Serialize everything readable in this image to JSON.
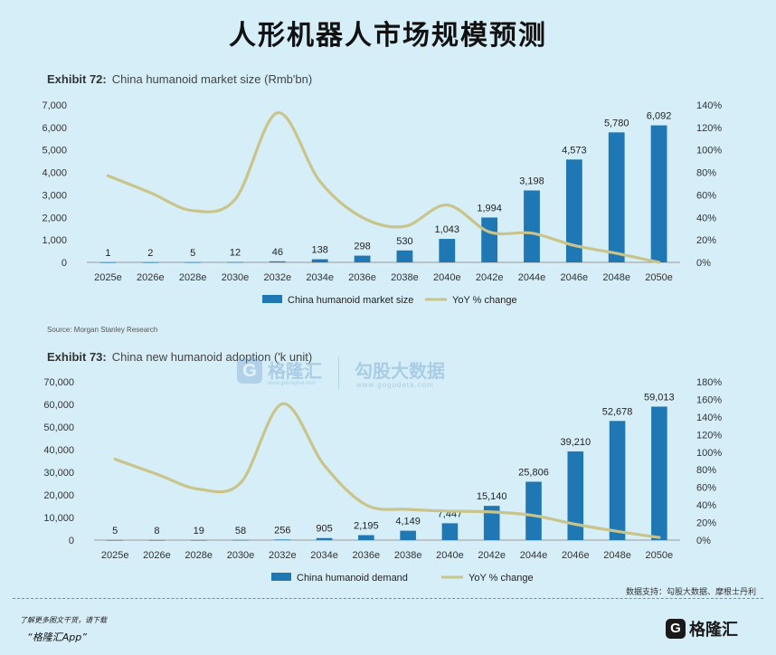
{
  "page": {
    "title": "人形机器人市场规模预测",
    "source": "Source: Morgan Stanley Research",
    "data_source": "数据支持：勾股大数据、摩根士丹利",
    "footer_line1": "了解更多图文干货，请下载",
    "footer_line2": "“格隆汇App”",
    "brand": "格隆汇",
    "brand_icon": "G",
    "watermark": {
      "name": "格隆汇",
      "url": "www.gelonghui.com",
      "name2": "勾股大数据",
      "url2": "www.gogudata.com"
    }
  },
  "chart_data": [
    {
      "type": "bar",
      "exhibit": "Exhibit 72:",
      "title": "China humanoid market size (Rmb'bn)",
      "categories": [
        "2025e",
        "2026e",
        "2028e",
        "2030e",
        "2032e",
        "2034e",
        "2036e",
        "2038e",
        "2040e",
        "2042e",
        "2044e",
        "2046e",
        "2048e",
        "2050e"
      ],
      "series": [
        {
          "name": "China humanoid market size",
          "kind": "bar",
          "axis": "left",
          "color": "#1f77b4",
          "values": [
            1,
            2,
            5,
            12,
            46,
            138,
            298,
            530,
            1043,
            1994,
            3198,
            4573,
            5780,
            6092
          ],
          "labels": [
            "1",
            "2",
            "5",
            "12",
            "46",
            "138",
            "298",
            "530",
            "1,043",
            "1,994",
            "3,198",
            "4,573",
            "5,780",
            "6,092"
          ]
        },
        {
          "name": "YoY % change",
          "kind": "line",
          "axis": "right",
          "color": "#c9c48a",
          "values": [
            77,
            62,
            46,
            56,
            133,
            72,
            40,
            32,
            51,
            27,
            26,
            15,
            8,
            0
          ]
        }
      ],
      "ylim_left": [
        0,
        7000
      ],
      "yticks_left": [
        "0",
        "1,000",
        "2,000",
        "3,000",
        "4,000",
        "5,000",
        "6,000",
        "7,000"
      ],
      "ylim_right": [
        0,
        140
      ],
      "yticks_right": [
        "0%",
        "20%",
        "40%",
        "60%",
        "80%",
        "100%",
        "120%",
        "140%"
      ],
      "legend": "bottom"
    },
    {
      "type": "bar",
      "exhibit": "Exhibit 73:",
      "title": "China new humanoid adoption ('k unit)",
      "categories": [
        "2025e",
        "2026e",
        "2028e",
        "2030e",
        "2032e",
        "2034e",
        "2036e",
        "2038e",
        "2040e",
        "2042e",
        "2044e",
        "2046e",
        "2048e",
        "2050e"
      ],
      "series": [
        {
          "name": "China humanoid demand",
          "kind": "bar",
          "axis": "left",
          "color": "#1f77b4",
          "values": [
            5,
            8,
            19,
            58,
            256,
            905,
            2195,
            4149,
            7447,
            15140,
            25806,
            39210,
            52678,
            59013
          ],
          "labels": [
            "5",
            "8",
            "19",
            "58",
            "256",
            "905",
            "2,195",
            "4,149",
            "7,447",
            "15,140",
            "25,806",
            "39,210",
            "52,678",
            "59,013"
          ]
        },
        {
          "name": "YoY % change",
          "kind": "line",
          "axis": "right",
          "color": "#c9c48a",
          "values": [
            92,
            75,
            58,
            65,
            155,
            85,
            40,
            35,
            33,
            32,
            28,
            18,
            10,
            3
          ]
        }
      ],
      "ylim_left": [
        0,
        70000
      ],
      "yticks_left": [
        "0",
        "10,000",
        "20,000",
        "30,000",
        "40,000",
        "50,000",
        "60,000",
        "70,000"
      ],
      "ylim_right": [
        0,
        180
      ],
      "yticks_right": [
        "0%",
        "20%",
        "40%",
        "60%",
        "80%",
        "100%",
        "120%",
        "140%",
        "160%",
        "180%"
      ],
      "legend": "bottom"
    }
  ]
}
